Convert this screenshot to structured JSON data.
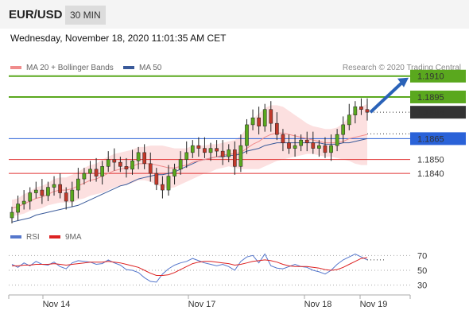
{
  "header": {
    "symbol": "EUR/USD",
    "timeframe": "30 MIN"
  },
  "datetime": "Wednesday, November 18, 2020 11:01:35 AM CET",
  "legend": {
    "items": [
      {
        "label": "MA 20 + Bollinger Bands",
        "color": "#f08c8c"
      },
      {
        "label": "MA 50",
        "color": "#3a5a9a"
      }
    ],
    "credit": "Research © 2020 Trading Central"
  },
  "sub_legend": {
    "items": [
      {
        "label": "RSI",
        "color": "#5577cc"
      },
      {
        "label": "9MA",
        "color": "#dd2222"
      }
    ]
  },
  "chart_data": [
    {
      "type": "candlestick",
      "title": "",
      "ylim": [
        1.18,
        1.1915
      ],
      "x_tick_labels": [
        "Nov 14",
        "Nov 17",
        "Nov 18",
        "Nov 19"
      ],
      "current_price": "1.1884",
      "levels": [
        {
          "value": 1.191,
          "label": "1.1910",
          "kind": "resistance",
          "color": "#5aa81e"
        },
        {
          "value": 1.1895,
          "label": "1.1895",
          "kind": "resistance",
          "color": "#5aa81e"
        },
        {
          "value": 1.1865,
          "label": "1.1865",
          "kind": "pivot",
          "color": "#2a62d8"
        },
        {
          "value": 1.185,
          "label": "1.1850",
          "kind": "support",
          "color": "#e03030"
        },
        {
          "value": 1.184,
          "label": "1.1840",
          "kind": "support",
          "color": "#e03030"
        }
      ],
      "close_series": [
        1.1812,
        1.1818,
        1.182,
        1.1826,
        1.1828,
        1.1824,
        1.183,
        1.1832,
        1.1826,
        1.182,
        1.1828,
        1.1836,
        1.184,
        1.1843,
        1.1838,
        1.1845,
        1.185,
        1.1848,
        1.1845,
        1.1843,
        1.1849,
        1.1855,
        1.1847,
        1.184,
        1.1832,
        1.1828,
        1.1838,
        1.1843,
        1.185,
        1.1855,
        1.186,
        1.1858,
        1.1855,
        1.1858,
        1.1856,
        1.1852,
        1.1857,
        1.1845,
        1.186,
        1.1875,
        1.188,
        1.1874,
        1.1886,
        1.1876,
        1.1868,
        1.1862,
        1.1858,
        1.186,
        1.1864,
        1.1862,
        1.1858,
        1.186,
        1.1855,
        1.186,
        1.1868,
        1.1875,
        1.1882,
        1.1888,
        1.1886,
        1.1884
      ],
      "ma20_series": [
        1.1815,
        1.1816,
        1.1818,
        1.182,
        1.1822,
        1.1823,
        1.1825,
        1.1827,
        1.1828,
        1.1828,
        1.1829,
        1.1831,
        1.1833,
        1.1835,
        1.1836,
        1.1838,
        1.184,
        1.1842,
        1.1843,
        1.1844,
        1.1845,
        1.1847,
        1.1847,
        1.1847,
        1.1846,
        1.1845,
        1.1844,
        1.1844,
        1.1845,
        1.1846,
        1.1848,
        1.1849,
        1.185,
        1.1851,
        1.1852,
        1.1853,
        1.1854,
        1.1854,
        1.1855,
        1.1858,
        1.1861,
        1.1863,
        1.1866,
        1.1868,
        1.1869,
        1.1869,
        1.1868,
        1.1867,
        1.1866,
        1.1865,
        1.1864,
        1.1863,
        1.1862,
        1.1862,
        1.1862,
        1.1863,
        1.1865,
        1.1866,
        1.1867,
        1.1868
      ],
      "ma50_series": [
        1.1805,
        1.1806,
        1.1807,
        1.1808,
        1.181,
        1.1811,
        1.1812,
        1.1813,
        1.1814,
        1.1815,
        1.1816,
        1.1817,
        1.1819,
        1.1821,
        1.1823,
        1.1825,
        1.1827,
        1.1829,
        1.1831,
        1.1832,
        1.1834,
        1.1836,
        1.1837,
        1.1838,
        1.1839,
        1.1839,
        1.184,
        1.1841,
        1.1843,
        1.1845,
        1.1847,
        1.1849,
        1.185,
        1.1851,
        1.1852,
        1.1852,
        1.1853,
        1.1853,
        1.1854,
        1.1856,
        1.1857,
        1.1858,
        1.186,
        1.1861,
        1.1862,
        1.1862,
        1.1862,
        1.1862,
        1.1862,
        1.1862,
        1.1862,
        1.1862,
        1.1861,
        1.1861,
        1.1861,
        1.1862,
        1.1862,
        1.1863,
        1.1864,
        1.1865
      ],
      "bollinger_width": [
        0.0006,
        0.0006,
        0.0007,
        0.0007,
        0.0008,
        0.0008,
        0.0008,
        0.0009,
        0.0009,
        0.0009,
        0.001,
        0.001,
        0.0011,
        0.0011,
        0.0011,
        0.0012,
        0.0012,
        0.0012,
        0.0012,
        0.0012,
        0.0012,
        0.0012,
        0.0012,
        0.0013,
        0.0014,
        0.0015,
        0.0015,
        0.0014,
        0.0013,
        0.0012,
        0.0012,
        0.0011,
        0.001,
        0.001,
        0.0009,
        0.0009,
        0.0009,
        0.001,
        0.0012,
        0.0015,
        0.0018,
        0.002,
        0.0021,
        0.0021,
        0.002,
        0.0019,
        0.0017,
        0.0015,
        0.0013,
        0.0011,
        0.001,
        0.001,
        0.001,
        0.001,
        0.0011,
        0.0013,
        0.0016,
        0.0019,
        0.0021,
        0.0022
      ]
    },
    {
      "type": "line",
      "title": "",
      "ylim": [
        20,
        80
      ],
      "y_ticks": [
        70,
        50,
        30
      ],
      "series": [
        {
          "name": "RSI",
          "color": "#5577cc",
          "values": [
            58,
            54,
            60,
            56,
            62,
            58,
            57,
            61,
            55,
            52,
            60,
            63,
            62,
            61,
            58,
            59,
            64,
            60,
            57,
            51,
            50,
            47,
            40,
            35,
            34,
            45,
            52,
            57,
            60,
            62,
            66,
            63,
            60,
            58,
            56,
            58,
            55,
            50,
            62,
            68,
            70,
            60,
            72,
            56,
            53,
            52,
            55,
            58,
            55,
            54,
            50,
            48,
            45,
            50,
            58,
            64,
            68,
            72,
            68,
            64
          ]
        },
        {
          "name": "9MA",
          "color": "#dd2222",
          "values": [
            56,
            56,
            57,
            57,
            58,
            58,
            58,
            59,
            58,
            57,
            58,
            59,
            60,
            61,
            61,
            61,
            62,
            61,
            60,
            58,
            56,
            54,
            50,
            46,
            43,
            43,
            44,
            47,
            51,
            55,
            59,
            61,
            62,
            62,
            61,
            60,
            59,
            57,
            58,
            60,
            62,
            63,
            64,
            63,
            61,
            58,
            56,
            55,
            55,
            55,
            54,
            53,
            51,
            50,
            51,
            54,
            58,
            62,
            66,
            67
          ]
        }
      ]
    }
  ]
}
